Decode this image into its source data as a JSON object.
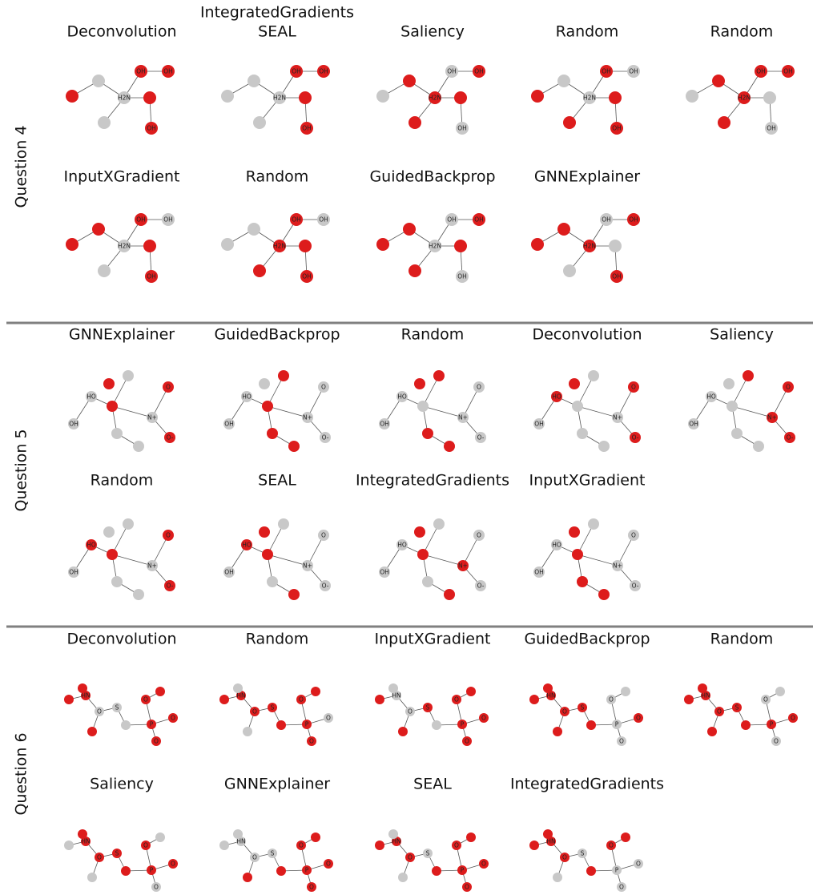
{
  "figure": {
    "colors": {
      "highlighted": "#dd1c1c",
      "unhighlighted": "#c8c8c8",
      "bond": "#555555",
      "separator": "#808080"
    }
  },
  "questions": [
    {
      "label": "Question 4",
      "panels": [
        {
          "title": "Deconvolution",
          "highlighted": [
            0,
            4,
            5,
            6,
            7
          ]
        },
        {
          "title": "IntegratedGradients\nSEAL",
          "highlighted": [
            4,
            5,
            6,
            7
          ]
        },
        {
          "title": "Saliency",
          "highlighted": [
            1,
            2,
            3,
            5,
            6
          ]
        },
        {
          "title": "Random",
          "highlighted": [
            0,
            3,
            4,
            5,
            7
          ]
        },
        {
          "title": "Random",
          "highlighted": [
            1,
            2,
            3,
            4,
            6
          ]
        },
        {
          "title": "InputXGradient",
          "highlighted": [
            0,
            1,
            4,
            5,
            7
          ]
        },
        {
          "title": "Random",
          "highlighted": [
            2,
            3,
            4,
            5,
            7
          ]
        },
        {
          "title": "GuidedBackprop",
          "highlighted": [
            0,
            1,
            3,
            5,
            6
          ]
        },
        {
          "title": "GNNExplainer",
          "highlighted": [
            0,
            1,
            2,
            6,
            7
          ]
        }
      ]
    },
    {
      "label": "Question 5",
      "panels": [
        {
          "title": "GNNExplainer",
          "highlighted": [
            1,
            6,
            7,
            9
          ]
        },
        {
          "title": "GuidedBackprop",
          "highlighted": [
            1,
            2,
            3,
            4
          ]
        },
        {
          "title": "Random",
          "highlighted": [
            2,
            3,
            4,
            9
          ]
        },
        {
          "title": "Deconvolution",
          "highlighted": [
            0,
            6,
            7,
            9
          ]
        },
        {
          "title": "Saliency",
          "highlighted": [
            2,
            5,
            6,
            7
          ]
        },
        {
          "title": "Random",
          "highlighted": [
            0,
            1,
            6,
            7
          ]
        },
        {
          "title": "SEAL",
          "highlighted": [
            0,
            1,
            4,
            9
          ]
        },
        {
          "title": "IntegratedGradients",
          "highlighted": [
            1,
            4,
            5,
            9
          ]
        },
        {
          "title": "InputXGradient",
          "highlighted": [
            1,
            3,
            4,
            9
          ]
        }
      ]
    },
    {
      "label": "Question 6",
      "panels": [
        {
          "title": "Deconvolution",
          "highlighted": [
            0,
            1,
            2,
            4,
            7,
            8,
            9,
            10,
            11
          ]
        },
        {
          "title": "Random",
          "highlighted": [
            0,
            1,
            3,
            5,
            6,
            7,
            8,
            10,
            11
          ]
        },
        {
          "title": "InputXGradient",
          "highlighted": [
            0,
            4,
            5,
            7,
            8,
            9,
            10,
            11
          ]
        },
        {
          "title": "GuidedBackprop",
          "highlighted": [
            0,
            1,
            2,
            3,
            4,
            5,
            6,
            9
          ]
        },
        {
          "title": "Random",
          "highlighted": [
            0,
            1,
            2,
            3,
            4,
            5,
            6,
            7,
            9
          ]
        },
        {
          "title": "Saliency",
          "highlighted": [
            1,
            2,
            3,
            5,
            6,
            7,
            8,
            9
          ]
        },
        {
          "title": "GNNExplainer",
          "highlighted": [
            4,
            6,
            7,
            8,
            9,
            10,
            11
          ]
        },
        {
          "title": "SEAL",
          "highlighted": [
            0,
            1,
            3,
            6,
            7,
            8,
            9,
            10,
            11
          ]
        },
        {
          "title": "IntegratedGradients",
          "highlighted": [
            0,
            1,
            2,
            3,
            6,
            8,
            11
          ]
        }
      ]
    }
  ],
  "molecules": [
    {
      "atom_labels": [
        "",
        "",
        "H2N",
        "",
        "OH",
        "",
        "OH",
        "OH"
      ]
    },
    {
      "atom_labels": [
        "HO",
        "",
        "",
        "",
        "",
        "N+",
        "O",
        "O-",
        "OH",
        ""
      ]
    },
    {
      "atom_labels": [
        "",
        "HN",
        "",
        "O",
        "",
        "S",
        "",
        "P",
        "O",
        "O",
        "O",
        ""
      ]
    }
  ]
}
